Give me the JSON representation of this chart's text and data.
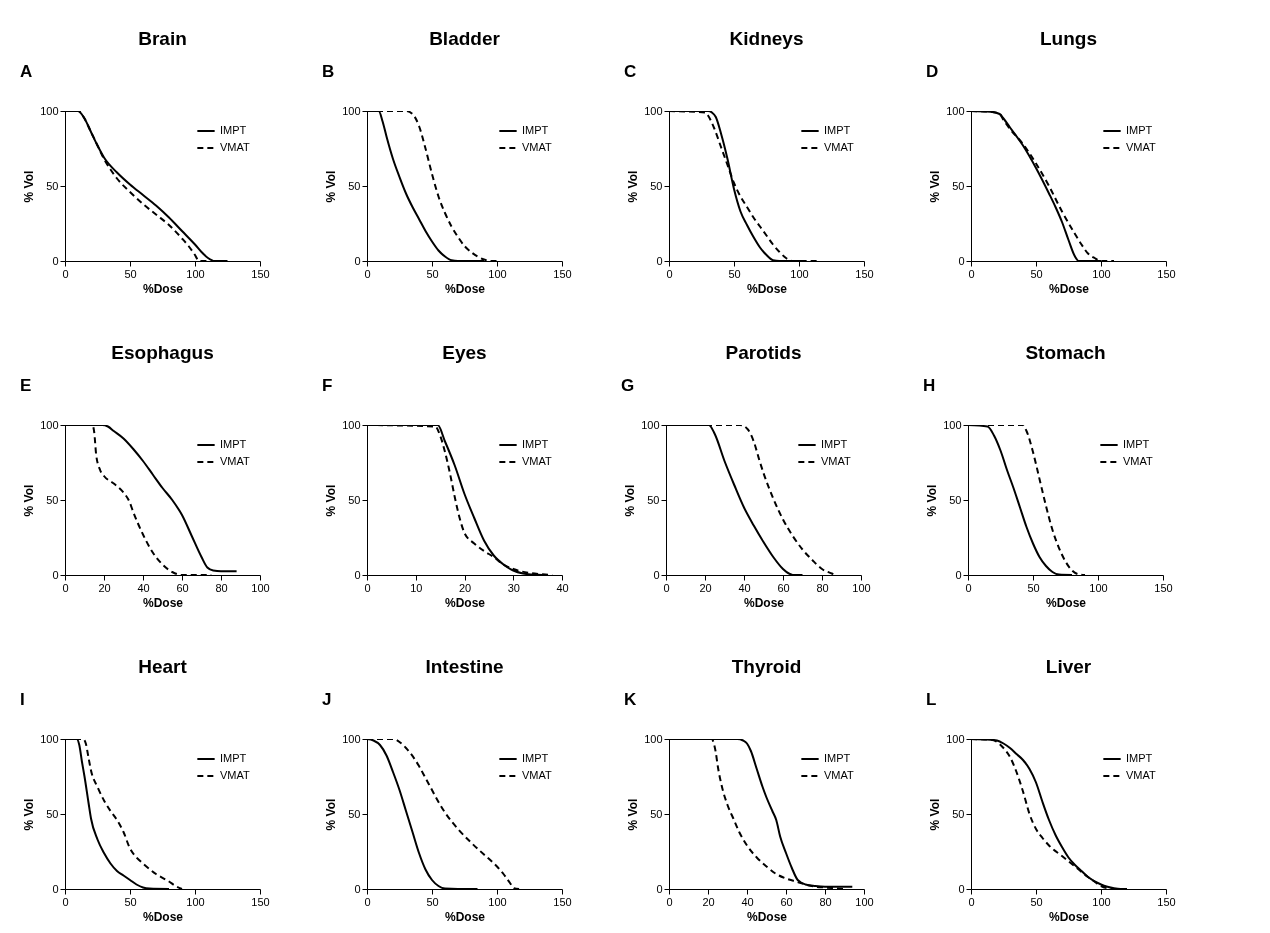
{
  "chart_data": [
    {
      "type": "line",
      "title": "Brain",
      "annotations": [
        "A"
      ],
      "xlabel": "%Dose",
      "ylabel": "% Vol",
      "xlim": [
        0,
        150
      ],
      "xticks": [
        0,
        50,
        100,
        150
      ],
      "ylim": [
        0,
        100
      ],
      "yticks": [
        0,
        50,
        100
      ],
      "legend": "top right",
      "series": [
        {
          "name": "IMPT",
          "color": "#000000",
          "line_style": "solid",
          "x": [
            0,
            10,
            15,
            20,
            25,
            30,
            40,
            50,
            60,
            70,
            80,
            90,
            100,
            105,
            110,
            115,
            125
          ],
          "values": [
            100,
            100,
            95,
            86,
            77,
            69,
            59,
            51,
            44,
            37,
            29,
            20,
            11,
            6,
            2,
            0,
            0
          ]
        },
        {
          "name": "VMAT",
          "color": "#000000",
          "line_style": "dashed",
          "x": [
            0,
            10,
            15,
            20,
            25,
            30,
            35,
            40,
            50,
            60,
            70,
            80,
            90,
            95,
            100,
            103,
            110
          ],
          "values": [
            100,
            100,
            95,
            86,
            77,
            68,
            61,
            55,
            46,
            38,
            31,
            24,
            15,
            10,
            4,
            0,
            0
          ]
        }
      ]
    },
    {
      "type": "line",
      "title": "Bladder",
      "annotations": [
        "B"
      ],
      "xlabel": "%Dose",
      "ylabel": "% Vol",
      "xlim": [
        0,
        150
      ],
      "xticks": [
        0,
        50,
        100,
        150
      ],
      "ylim": [
        0,
        100
      ],
      "yticks": [
        0,
        50,
        100
      ],
      "legend": "top right",
      "series": [
        {
          "name": "IMPT",
          "color": "#000000",
          "line_style": "solid",
          "x": [
            0,
            9,
            12,
            15,
            20,
            25,
            30,
            35,
            40,
            45,
            50,
            55,
            60,
            65,
            70,
            90
          ],
          "values": [
            100,
            100,
            93,
            83,
            68,
            56,
            45,
            36,
            28,
            20,
            13,
            7,
            3,
            0.5,
            0,
            0
          ]
        },
        {
          "name": "VMAT",
          "color": "#000000",
          "line_style": "dashed",
          "x": [
            0,
            30,
            35,
            40,
            45,
            50,
            55,
            60,
            65,
            70,
            75,
            80,
            85,
            90,
            95,
            100
          ],
          "values": [
            100,
            100,
            98,
            90,
            75,
            58,
            43,
            32,
            23,
            16,
            10,
            6,
            3,
            1,
            0,
            0
          ]
        }
      ]
    },
    {
      "type": "line",
      "title": "Kidneys",
      "annotations": [
        "C"
      ],
      "xlabel": "%Dose",
      "ylabel": "% Vol",
      "xlim": [
        0,
        150
      ],
      "xticks": [
        0,
        50,
        100,
        150
      ],
      "ylim": [
        0,
        100
      ],
      "yticks": [
        0,
        50,
        100
      ],
      "legend": "top right",
      "series": [
        {
          "name": "IMPT",
          "color": "#000000",
          "line_style": "solid",
          "x": [
            0,
            30,
            33,
            36,
            40,
            45,
            50,
            55,
            60,
            65,
            70,
            75,
            80,
            85,
            105
          ],
          "values": [
            100,
            100,
            99,
            96,
            85,
            68,
            48,
            33,
            24,
            16,
            9,
            4,
            0.5,
            0,
            0
          ]
        },
        {
          "name": "VMAT",
          "color": "#000000",
          "line_style": "dashed",
          "x": [
            0,
            28,
            30,
            35,
            40,
            45,
            50,
            55,
            60,
            65,
            70,
            75,
            80,
            85,
            90,
            95,
            115
          ],
          "values": [
            100,
            99,
            97,
            88,
            76,
            64,
            52,
            43,
            36,
            29,
            23,
            17,
            11,
            6,
            2,
            0,
            0
          ]
        }
      ]
    },
    {
      "type": "line",
      "title": "Lungs",
      "annotations": [
        "D"
      ],
      "xlabel": "%Dose",
      "ylabel": "% Vol",
      "xlim": [
        0,
        150
      ],
      "xticks": [
        0,
        50,
        100,
        150
      ],
      "ylim": [
        0,
        100
      ],
      "yticks": [
        0,
        50,
        100
      ],
      "legend": "top right",
      "series": [
        {
          "name": "IMPT",
          "color": "#000000",
          "line_style": "solid",
          "x": [
            0,
            15,
            22,
            25,
            30,
            40,
            50,
            60,
            65,
            70,
            75,
            80,
            83,
            100
          ],
          "values": [
            100,
            99.5,
            98,
            95,
            89,
            77,
            62,
            45,
            36,
            26,
            14,
            3,
            0,
            0
          ]
        },
        {
          "name": "VMAT",
          "color": "#000000",
          "line_style": "dashed",
          "x": [
            0,
            15,
            22,
            25,
            30,
            40,
            50,
            60,
            70,
            80,
            85,
            90,
            95,
            100,
            110
          ],
          "values": [
            100,
            99.5,
            98,
            94,
            88,
            78,
            65,
            50,
            33,
            18,
            11,
            5,
            2,
            0,
            0
          ]
        }
      ]
    },
    {
      "type": "line",
      "title": "Esophagus",
      "annotations": [
        "E"
      ],
      "xlabel": "%Dose",
      "ylabel": "% Vol",
      "xlim": [
        0,
        100
      ],
      "xticks": [
        0,
        20,
        40,
        60,
        80,
        100
      ],
      "ylim": [
        0,
        100
      ],
      "yticks": [
        0,
        50,
        100
      ],
      "legend": "top right",
      "series": [
        {
          "name": "IMPT",
          "color": "#000000",
          "line_style": "solid",
          "x": [
            0,
            19,
            22,
            25,
            30,
            35,
            40,
            45,
            50,
            55,
            60,
            65,
            70,
            73,
            76,
            80,
            88
          ],
          "values": [
            100,
            100,
            99,
            96,
            91,
            84,
            76,
            67,
            58,
            50,
            40,
            26,
            12,
            5,
            3,
            2.5,
            2.5
          ]
        },
        {
          "name": "VMAT",
          "color": "#000000",
          "line_style": "dashed",
          "x": [
            0,
            14,
            15,
            16,
            18,
            20,
            25,
            30,
            33,
            35,
            40,
            45,
            50,
            55,
            60,
            75
          ],
          "values": [
            100,
            100,
            95,
            80,
            70,
            66,
            61,
            55,
            49,
            42,
            27,
            15,
            7,
            2,
            0,
            0
          ]
        }
      ]
    },
    {
      "type": "line",
      "title": "Eyes",
      "annotations": [
        "F"
      ],
      "xlabel": "%Dose",
      "ylabel": "% Vol",
      "xlim": [
        0,
        40
      ],
      "xticks": [
        0,
        10,
        20,
        30,
        40
      ],
      "ylim": [
        0,
        100
      ],
      "yticks": [
        0,
        50,
        100
      ],
      "legend": "top right",
      "series": [
        {
          "name": "IMPT",
          "color": "#000000",
          "line_style": "solid",
          "x": [
            0,
            14.5,
            16,
            18,
            20,
            22,
            24,
            26,
            28,
            30,
            32,
            34,
            36
          ],
          "values": [
            100,
            100,
            89,
            73,
            54,
            38,
            23,
            13,
            7,
            3,
            1,
            0.3,
            0
          ]
        },
        {
          "name": "VMAT",
          "color": "#000000",
          "line_style": "dashed",
          "x": [
            0,
            14,
            15,
            16,
            17,
            18,
            19,
            20,
            22,
            24,
            26,
            28,
            30,
            33,
            36,
            38
          ],
          "values": [
            100,
            99,
            93,
            82,
            68,
            52,
            38,
            28,
            21,
            16,
            12,
            7,
            4,
            1.5,
            0.5,
            0
          ]
        }
      ]
    },
    {
      "type": "line",
      "title": "Parotids",
      "annotations": [
        "G"
      ],
      "xlabel": "%Dose",
      "ylabel": "% Vol",
      "xlim": [
        0,
        100
      ],
      "xticks": [
        0,
        20,
        40,
        60,
        80,
        100
      ],
      "ylim": [
        0,
        100
      ],
      "yticks": [
        0,
        50,
        100
      ],
      "legend": "top right",
      "series": [
        {
          "name": "IMPT",
          "color": "#000000",
          "line_style": "solid",
          "x": [
            0,
            22,
            25,
            30,
            35,
            40,
            45,
            50,
            55,
            60,
            63,
            65,
            70
          ],
          "values": [
            100,
            100,
            94,
            76,
            60,
            45,
            33,
            22,
            12,
            4,
            1,
            0,
            0
          ]
        },
        {
          "name": "VMAT",
          "color": "#000000",
          "line_style": "dashed",
          "x": [
            0,
            38,
            42,
            45,
            48,
            50,
            55,
            60,
            65,
            70,
            75,
            80,
            85,
            87
          ],
          "values": [
            100,
            100,
            97,
            89,
            76,
            68,
            51,
            37,
            26,
            17,
            10,
            4,
            1,
            0
          ]
        }
      ]
    },
    {
      "type": "line",
      "title": "Stomach",
      "annotations": [
        "H"
      ],
      "xlabel": "%Dose",
      "ylabel": "% Vol",
      "xlim": [
        0,
        150
      ],
      "xticks": [
        0,
        50,
        100,
        150
      ],
      "ylim": [
        0,
        100
      ],
      "yticks": [
        0,
        50,
        100
      ],
      "legend": "top right",
      "series": [
        {
          "name": "IMPT",
          "color": "#000000",
          "line_style": "solid",
          "x": [
            0,
            15,
            20,
            25,
            30,
            35,
            40,
            45,
            50,
            55,
            60,
            65,
            70,
            80
          ],
          "values": [
            100,
            99,
            93,
            83,
            70,
            58,
            45,
            32,
            21,
            12,
            6,
            2,
            0.3,
            0
          ]
        },
        {
          "name": "VMAT",
          "color": "#000000",
          "line_style": "dashed",
          "x": [
            0,
            42,
            45,
            50,
            55,
            60,
            65,
            70,
            75,
            80,
            85,
            90
          ],
          "values": [
            100,
            100,
            96,
            82,
            64,
            46,
            30,
            18,
            9,
            3,
            0.5,
            0
          ]
        }
      ]
    },
    {
      "type": "line",
      "title": "Heart",
      "annotations": [
        "I"
      ],
      "xlabel": "%Dose",
      "ylabel": "% Vol",
      "xlim": [
        0,
        150
      ],
      "xticks": [
        0,
        50,
        100,
        150
      ],
      "ylim": [
        0,
        100
      ],
      "yticks": [
        0,
        50,
        100
      ],
      "legend": "top right",
      "series": [
        {
          "name": "IMPT",
          "color": "#000000",
          "line_style": "solid",
          "x": [
            0,
            9,
            11,
            13,
            15,
            18,
            20,
            25,
            30,
            35,
            40,
            45,
            50,
            55,
            60,
            65,
            80
          ],
          "values": [
            100,
            100,
            96,
            85,
            75,
            58,
            47,
            33,
            24,
            17,
            12,
            9,
            6,
            3,
            1,
            0.3,
            0
          ]
        },
        {
          "name": "VMAT",
          "color": "#000000",
          "line_style": "dashed",
          "x": [
            0,
            14,
            16,
            18,
            20,
            25,
            30,
            35,
            40,
            45,
            50,
            55,
            60,
            70,
            80,
            85,
            90
          ],
          "values": [
            100,
            100,
            97,
            88,
            79,
            68,
            59,
            52,
            46,
            38,
            27,
            21,
            17,
            10,
            5,
            2,
            0
          ]
        }
      ]
    },
    {
      "type": "line",
      "title": "Intestine",
      "annotations": [
        "J"
      ],
      "xlabel": "%Dose",
      "ylabel": "% Vol",
      "xlim": [
        0,
        150
      ],
      "xticks": [
        0,
        50,
        100,
        150
      ],
      "ylim": [
        0,
        100
      ],
      "yticks": [
        0,
        50,
        100
      ],
      "legend": "top right",
      "series": [
        {
          "name": "IMPT",
          "color": "#000000",
          "line_style": "solid",
          "x": [
            0,
            5,
            10,
            15,
            20,
            25,
            30,
            35,
            40,
            45,
            50,
            55,
            60,
            70,
            85
          ],
          "values": [
            100,
            99,
            96,
            89,
            78,
            66,
            52,
            38,
            24,
            13,
            6,
            2,
            0.3,
            0,
            0
          ]
        },
        {
          "name": "VMAT",
          "color": "#000000",
          "line_style": "dashed",
          "x": [
            0,
            10,
            20,
            25,
            30,
            40,
            45,
            50,
            55,
            60,
            70,
            80,
            90,
            100,
            105,
            110,
            113,
            117
          ],
          "values": [
            100,
            100,
            100,
            98,
            94,
            82,
            74,
            66,
            58,
            51,
            40,
            31,
            23,
            15,
            10,
            4,
            0.5,
            0
          ]
        }
      ]
    },
    {
      "type": "line",
      "title": "Thyroid",
      "annotations": [
        "K"
      ],
      "xlabel": "%Dose",
      "ylabel": "% Vol",
      "xlim": [
        0,
        100
      ],
      "xticks": [
        0,
        20,
        40,
        60,
        80,
        100
      ],
      "ylim": [
        0,
        100
      ],
      "yticks": [
        0,
        50,
        100
      ],
      "legend": "top right",
      "series": [
        {
          "name": "IMPT",
          "color": "#000000",
          "line_style": "solid",
          "x": [
            0,
            35,
            38,
            40,
            42,
            45,
            48,
            50,
            53,
            55,
            57,
            60,
            63,
            66,
            70,
            75,
            80,
            94
          ],
          "values": [
            100,
            100,
            99,
            97,
            92,
            80,
            68,
            61,
            52,
            46,
            35,
            24,
            14,
            6,
            3,
            2,
            1.5,
            1.5
          ]
        },
        {
          "name": "VMAT",
          "color": "#000000",
          "line_style": "dashed",
          "x": [
            0,
            22,
            23,
            24,
            25,
            27,
            30,
            33,
            36,
            40,
            45,
            50,
            55,
            60,
            65,
            70,
            75,
            80,
            85,
            90
          ],
          "values": [
            100,
            100,
            97,
            91,
            82,
            69,
            56,
            47,
            38,
            29,
            21,
            15,
            10,
            7,
            5,
            3,
            1.5,
            1,
            0.5,
            0
          ]
        }
      ]
    },
    {
      "type": "line",
      "title": "Liver",
      "annotations": [
        "L"
      ],
      "xlabel": "%Dose",
      "ylabel": "% Vol",
      "xlim": [
        0,
        150
      ],
      "xticks": [
        0,
        50,
        100,
        150
      ],
      "ylim": [
        0,
        100
      ],
      "yticks": [
        0,
        50,
        100
      ],
      "legend": "top right",
      "series": [
        {
          "name": "IMPT",
          "color": "#000000",
          "line_style": "solid",
          "x": [
            0,
            15,
            20,
            25,
            30,
            35,
            40,
            45,
            50,
            55,
            60,
            65,
            70,
            75,
            80,
            85,
            90,
            100,
            105,
            110,
            115,
            120
          ],
          "values": [
            100,
            99.5,
            99,
            97,
            94,
            90,
            86,
            80,
            71,
            58,
            46,
            36,
            28,
            21,
            16,
            12,
            8,
            3,
            1.5,
            0.5,
            0,
            0
          ]
        },
        {
          "name": "VMAT",
          "color": "#000000",
          "line_style": "dashed",
          "x": [
            0,
            15,
            20,
            25,
            30,
            35,
            40,
            45,
            50,
            55,
            60,
            70,
            80,
            90,
            95,
            100,
            105,
            110
          ],
          "values": [
            100,
            99.5,
            98,
            94,
            88,
            78,
            65,
            50,
            40,
            34,
            29,
            22,
            15,
            8,
            5,
            2,
            0.5,
            0
          ]
        }
      ]
    }
  ]
}
